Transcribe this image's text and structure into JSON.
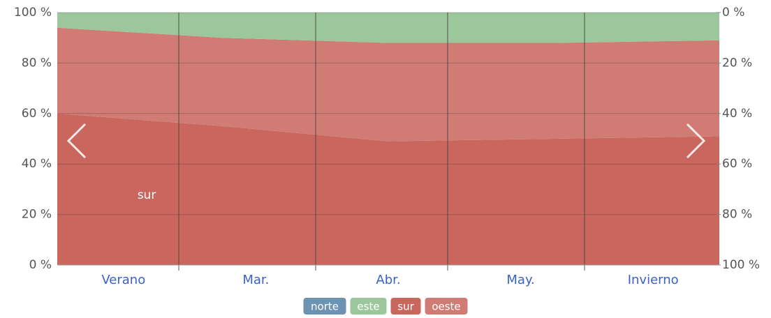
{
  "chart_data": {
    "type": "stacked_area",
    "categories": [
      "Verano",
      "Mar.",
      "Abr.",
      "May.",
      "Invierno"
    ],
    "series": [
      {
        "name": "sur",
        "color": "#c9665e",
        "values": [
          60,
          55,
          49,
          50,
          51
        ]
      },
      {
        "name": "oeste",
        "color": "#d07c74",
        "values": [
          34,
          35,
          39,
          38,
          38
        ]
      },
      {
        "name": "este",
        "color": "#9cc79d",
        "values": [
          6,
          10,
          12,
          12,
          11
        ]
      },
      {
        "name": "norte",
        "color": "#6d93b3",
        "values": [
          0,
          0,
          0,
          0,
          0
        ]
      }
    ],
    "legend_order": [
      3,
      2,
      0,
      1
    ],
    "ylim": [
      0,
      100
    ],
    "yticks": [
      {
        "value": 0,
        "label": "0 %"
      },
      {
        "value": 20,
        "label": "20 %"
      },
      {
        "value": 40,
        "label": "40 %"
      },
      {
        "value": 60,
        "label": "60 %"
      },
      {
        "value": 80,
        "label": "80 %"
      },
      {
        "value": 100,
        "label": "100 %"
      }
    ],
    "y2lim": [
      100,
      0
    ],
    "y2ticks": [
      {
        "value": 0,
        "label": "0 %"
      },
      {
        "value": 20,
        "label": "20 %"
      },
      {
        "value": 40,
        "label": "40 %"
      },
      {
        "value": 60,
        "label": "60 %"
      },
      {
        "value": 80,
        "label": "80 %"
      },
      {
        "value": 100,
        "label": "100 %"
      }
    ],
    "grid": true
  }
}
